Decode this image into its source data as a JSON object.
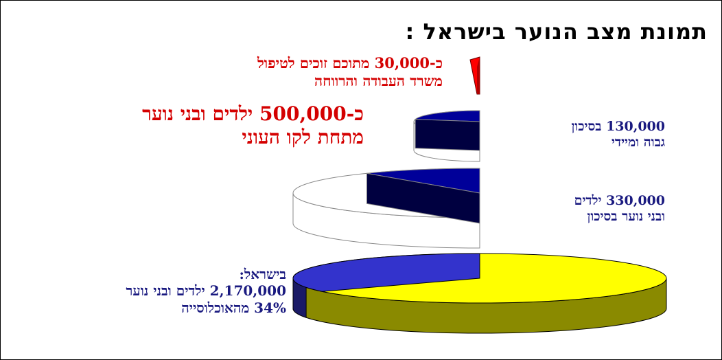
{
  "title": "תמונת מצב הנוער בישראל :",
  "chart_data": {
    "type": "pie",
    "title": "תמונת מצב הנוער בישראל :",
    "series": [
      {
        "value": 2170000,
        "note": "34% מהאוכלוסייה"
      },
      {
        "value": 330000
      },
      {
        "value": 130000
      },
      {
        "value": 30000
      }
    ]
  },
  "labels": {
    "total": {
      "line1": "בישראל:",
      "line2": "2,170,000 ילדים ובני נוער",
      "line3": "34% מהאוכלוסייה"
    },
    "risk": {
      "line1": "330,000 ילדים",
      "line2": "ובני נוער בסיכון"
    },
    "high": {
      "line1": "130,000 בסיכון",
      "line2": "גבוה ומיידי"
    },
    "poverty": {
      "line1": "כ-500,000 ילדים ובני נוער",
      "line2": "מתחת לקו העוני"
    },
    "care": {
      "line1": "כ-30,000 מתוכם זוכים לטיפול",
      "line2": "משרד העבודה והרווחה"
    }
  },
  "colors": {
    "yellow_top": "#ffff00",
    "yellow_side": "#8a8a00",
    "blue_top": "#3333cc",
    "blue_side": "#1a1a66",
    "navy_top": "#000099",
    "navy_side": "#000040",
    "red_top": "#ff0000",
    "red_side": "#b00000",
    "outline": "#888888",
    "red_text": "#d40000",
    "blue_text": "#1a1a80"
  }
}
